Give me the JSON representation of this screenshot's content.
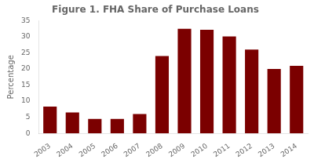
{
  "chart_data": {
    "type": "bar",
    "title": "Figure 1. FHA Share of Purchase Loans",
    "categories": [
      "2003",
      "2004",
      "2005",
      "2006",
      "2007",
      "2008",
      "2009",
      "2010",
      "2011",
      "2012",
      "2013",
      "2014"
    ],
    "values": [
      8.3,
      6.5,
      4.5,
      4.5,
      6.0,
      24.0,
      32.5,
      32.2,
      30.1,
      26.0,
      20.0,
      21.0
    ],
    "color": "#7B0000",
    "ylabel": "Percentage",
    "ylim": [
      0,
      35
    ],
    "yticks": [
      0,
      5,
      10,
      15,
      20,
      25,
      30,
      35
    ],
    "grid": false
  }
}
